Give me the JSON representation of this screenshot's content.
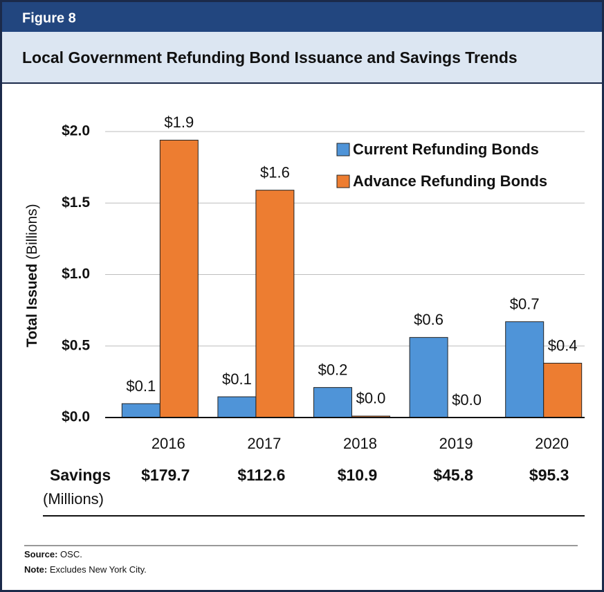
{
  "figure_label": "Figure 8",
  "chart_data": {
    "type": "bar",
    "title": "Local Government Refunding Bond Issuance and Savings Trends",
    "ylabel": "Total Issued",
    "ylabel_unit": "(Billions)",
    "categories": [
      "2016",
      "2017",
      "2018",
      "2019",
      "2020"
    ],
    "series": [
      {
        "name": "Current Refunding Bonds",
        "color": "#4f94d8",
        "values": [
          0.097,
          0.145,
          0.21,
          0.56,
          0.67
        ],
        "value_labels": [
          "$0.1",
          "$0.1",
          "$0.2",
          "$0.6",
          "$0.7"
        ]
      },
      {
        "name": "Advance Refunding Bonds",
        "color": "#ed7d31",
        "values": [
          1.94,
          1.59,
          0.01,
          0,
          0.38
        ],
        "value_labels": [
          "$1.9",
          "$1.6",
          "$0.0",
          "$0.0",
          "$0.4"
        ]
      }
    ],
    "ylim": [
      0,
      2.0
    ],
    "yticks": [
      {
        "value": 0,
        "label": "$0.0"
      },
      {
        "value": 0.5,
        "label": "$0.5"
      },
      {
        "value": 1.0,
        "label": "$1.0"
      },
      {
        "value": 1.5,
        "label": "$1.5"
      },
      {
        "value": 2.0,
        "label": "$2.0"
      }
    ],
    "grid": true,
    "legend": "upper right",
    "savings": {
      "label": "Savings",
      "unit": "(Millions)",
      "values": [
        179.7,
        112.6,
        10.9,
        45.8,
        95.3
      ],
      "value_labels": [
        "$179.7",
        "$112.6",
        "$10.9",
        "$45.8",
        "$95.3"
      ]
    }
  },
  "footer": {
    "source_label": "Source:",
    "source": "OSC.",
    "note_label": "Note:",
    "note": "Excludes New York City."
  }
}
